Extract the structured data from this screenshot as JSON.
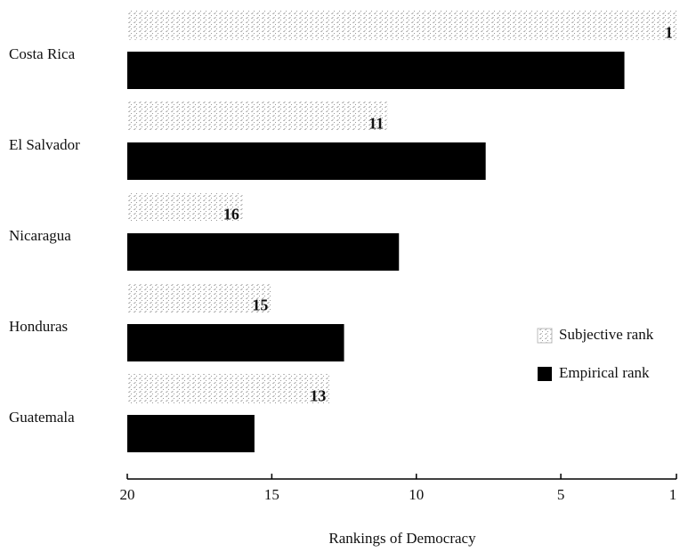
{
  "chart_data": {
    "type": "hbar",
    "categories": [
      "Costa Rica",
      "El Salvador",
      "Nicaragua",
      "Honduras",
      "Guatemala"
    ],
    "series": [
      {
        "name": "Subjective rank",
        "color": "#d4d4d4",
        "values": [
          1,
          11,
          16,
          15,
          13
        ]
      },
      {
        "name": "Empirical rank",
        "color": "#000000",
        "values": [
          2.8,
          7.6,
          10.6,
          12.5,
          15.6
        ]
      }
    ],
    "xlabel": "Rankings of Democracy",
    "xlim": [
      20,
      1
    ],
    "xticks": [
      20,
      15,
      10,
      5,
      1
    ],
    "legend": "right"
  }
}
